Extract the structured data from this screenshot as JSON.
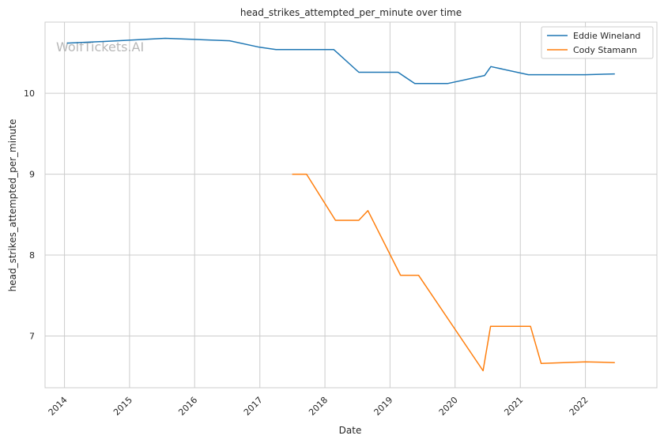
{
  "chart_data": {
    "type": "line",
    "title": "head_strikes_attempted_per_minute over time",
    "xlabel": "Date",
    "ylabel": "head_strikes_attempted_per_minute",
    "watermark": "WolfTickets.AI",
    "xlim": [
      "2013-09-14",
      "2023-02-06"
    ],
    "ylim": [
      6.36,
      10.88
    ],
    "x_ticks": [
      "2014",
      "2015",
      "2016",
      "2017",
      "2018",
      "2019",
      "2020",
      "2021",
      "2022"
    ],
    "y_ticks": [
      7,
      8,
      9,
      10
    ],
    "grid": true,
    "legend_position": "top-right",
    "series": [
      {
        "name": "Eddie Wineland",
        "color": "#1f77b4",
        "points": [
          [
            "2014-01-15",
            10.62
          ],
          [
            "2014-08-01",
            10.64
          ],
          [
            "2015-07-20",
            10.68
          ],
          [
            "2016-07-15",
            10.65
          ],
          [
            "2016-12-30",
            10.57
          ],
          [
            "2017-04-01",
            10.54
          ],
          [
            "2018-02-20",
            10.54
          ],
          [
            "2018-07-10",
            10.26
          ],
          [
            "2019-02-15",
            10.26
          ],
          [
            "2019-05-20",
            10.12
          ],
          [
            "2019-11-20",
            10.12
          ],
          [
            "2020-06-15",
            10.22
          ],
          [
            "2020-07-20",
            10.33
          ],
          [
            "2021-02-15",
            10.23
          ],
          [
            "2022-01-01",
            10.23
          ],
          [
            "2022-06-15",
            10.24
          ]
        ]
      },
      {
        "name": "Cody Stamann",
        "color": "#ff7f0e",
        "points": [
          [
            "2017-07-01",
            9.0
          ],
          [
            "2017-09-20",
            9.0
          ],
          [
            "2018-03-01",
            8.43
          ],
          [
            "2018-07-10",
            8.43
          ],
          [
            "2018-08-30",
            8.55
          ],
          [
            "2019-03-01",
            7.75
          ],
          [
            "2019-06-10",
            7.75
          ],
          [
            "2020-06-06",
            6.57
          ],
          [
            "2020-07-18",
            7.12
          ],
          [
            "2021-02-27",
            7.12
          ],
          [
            "2021-04-28",
            6.66
          ],
          [
            "2022-01-01",
            6.68
          ],
          [
            "2022-06-15",
            6.67
          ]
        ]
      }
    ]
  }
}
